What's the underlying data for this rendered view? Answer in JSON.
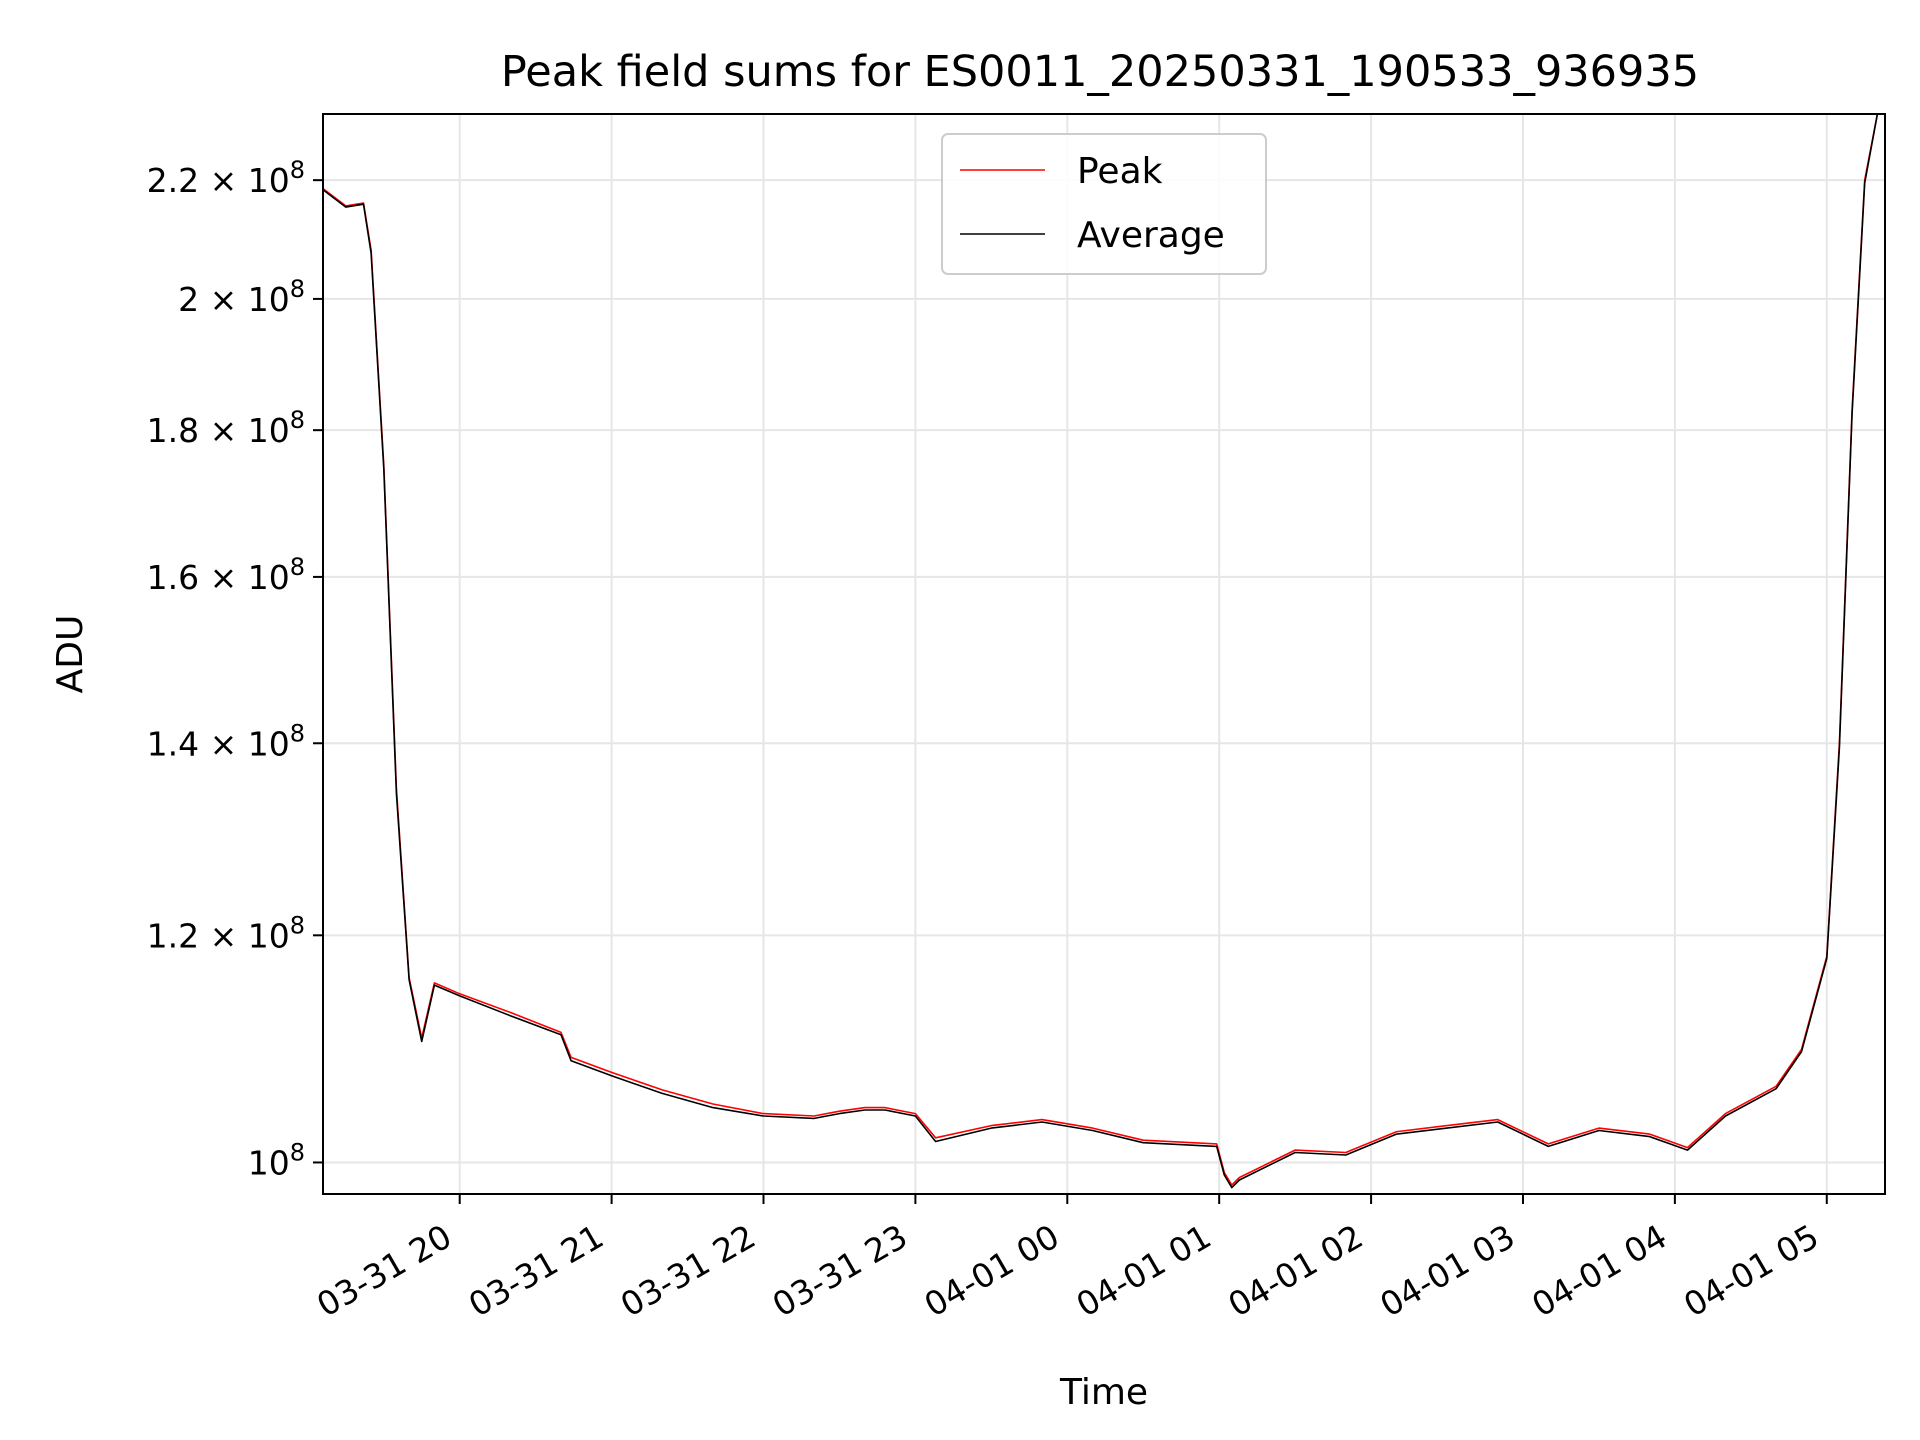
{
  "chart_data": {
    "type": "line",
    "title": "Peak field sums for ES0011_20250331_190533_936935",
    "xlabel": "Time",
    "ylabel": "ADU",
    "y_scale": "log",
    "grid": true,
    "legend_position": "top-center",
    "xlim": [
      "2025-03-31 19:06",
      "2025-04-01 05:23"
    ],
    "ylim": [
      97500000,
      232000000
    ],
    "x_ticks": [
      {
        "value": "2025-03-31 20:00",
        "label": "03-31 20"
      },
      {
        "value": "2025-03-31 21:00",
        "label": "03-31 21"
      },
      {
        "value": "2025-03-31 22:00",
        "label": "03-31 22"
      },
      {
        "value": "2025-03-31 23:00",
        "label": "03-31 23"
      },
      {
        "value": "2025-04-01 00:00",
        "label": "04-01 00"
      },
      {
        "value": "2025-04-01 01:00",
        "label": "04-01 01"
      },
      {
        "value": "2025-04-01 02:00",
        "label": "04-01 02"
      },
      {
        "value": "2025-04-01 03:00",
        "label": "04-01 03"
      },
      {
        "value": "2025-04-01 04:00",
        "label": "04-01 04"
      },
      {
        "value": "2025-04-01 05:00",
        "label": "04-01 05"
      }
    ],
    "y_ticks": [
      {
        "value": 100000000,
        "mantissa": "",
        "exponent": "8"
      },
      {
        "value": 120000000,
        "mantissa": "1.2",
        "exponent": "8"
      },
      {
        "value": 140000000,
        "mantissa": "1.4",
        "exponent": "8"
      },
      {
        "value": 160000000,
        "mantissa": "1.6",
        "exponent": "8"
      },
      {
        "value": 180000000,
        "mantissa": "1.8",
        "exponent": "8"
      },
      {
        "value": 200000000,
        "mantissa": "2",
        "exponent": "8"
      },
      {
        "value": 220000000,
        "mantissa": "2.2",
        "exponent": "8"
      }
    ],
    "series": [
      {
        "name": "Peak",
        "color": "#ff0000",
        "x": [
          "2025-03-31 19:06",
          "2025-03-31 19:15",
          "2025-03-31 19:22",
          "2025-03-31 19:25",
          "2025-03-31 19:30",
          "2025-03-31 19:35",
          "2025-03-31 19:40",
          "2025-03-31 19:45",
          "2025-03-31 19:50",
          "2025-03-31 20:00",
          "2025-03-31 20:20",
          "2025-03-31 20:40",
          "2025-03-31 20:44",
          "2025-03-31 21:00",
          "2025-03-31 21:20",
          "2025-03-31 21:40",
          "2025-03-31 22:00",
          "2025-03-31 22:20",
          "2025-03-31 22:30",
          "2025-03-31 22:40",
          "2025-03-31 22:48",
          "2025-03-31 23:00",
          "2025-03-31 23:08",
          "2025-03-31 23:30",
          "2025-03-31 23:50",
          "2025-04-01 00:10",
          "2025-04-01 00:30",
          "2025-04-01 00:59",
          "2025-04-01 01:02",
          "2025-04-01 01:05",
          "2025-04-01 01:08",
          "2025-04-01 01:30",
          "2025-04-01 01:50",
          "2025-04-01 02:10",
          "2025-04-01 02:30",
          "2025-04-01 02:50",
          "2025-04-01 03:10",
          "2025-04-01 03:30",
          "2025-04-01 03:50",
          "2025-04-01 04:05",
          "2025-04-01 04:20",
          "2025-04-01 04:40",
          "2025-04-01 04:50",
          "2025-04-01 05:00",
          "2025-04-01 05:05",
          "2025-04-01 05:10",
          "2025-04-01 05:15",
          "2025-04-01 05:20"
        ],
        "values": [
          218500000,
          215500000,
          216000000,
          208000000,
          175000000,
          135000000,
          116000000,
          110500000,
          115500000,
          114500000,
          112800000,
          111000000,
          108800000,
          107500000,
          106000000,
          104800000,
          104000000,
          103800000,
          104200000,
          104500000,
          104500000,
          104000000,
          102000000,
          103000000,
          103500000,
          102800000,
          101800000,
          101500000,
          99200000,
          98200000,
          98800000,
          101000000,
          100800000,
          102500000,
          103000000,
          103500000,
          101500000,
          102800000,
          102300000,
          101200000,
          104000000,
          106300000,
          109500000,
          118000000,
          140000000,
          183000000,
          220000000,
          232000000
        ]
      },
      {
        "name": "Average",
        "color": "#000000",
        "x": [
          "2025-03-31 19:06",
          "2025-03-31 19:15",
          "2025-03-31 19:22",
          "2025-03-31 19:25",
          "2025-03-31 19:30",
          "2025-03-31 19:35",
          "2025-03-31 19:40",
          "2025-03-31 19:45",
          "2025-03-31 19:50",
          "2025-03-31 20:00",
          "2025-03-31 20:20",
          "2025-03-31 20:40",
          "2025-03-31 20:44",
          "2025-03-31 21:00",
          "2025-03-31 21:20",
          "2025-03-31 21:40",
          "2025-03-31 22:00",
          "2025-03-31 22:20",
          "2025-03-31 22:30",
          "2025-03-31 22:40",
          "2025-03-31 22:48",
          "2025-03-31 23:00",
          "2025-03-31 23:08",
          "2025-03-31 23:30",
          "2025-03-31 23:50",
          "2025-04-01 00:10",
          "2025-04-01 00:30",
          "2025-04-01 00:59",
          "2025-04-01 01:02",
          "2025-04-01 01:05",
          "2025-04-01 01:08",
          "2025-04-01 01:30",
          "2025-04-01 01:50",
          "2025-04-01 02:10",
          "2025-04-01 02:30",
          "2025-04-01 02:50",
          "2025-04-01 03:10",
          "2025-04-01 03:30",
          "2025-04-01 03:50",
          "2025-04-01 04:05",
          "2025-04-01 04:20",
          "2025-04-01 04:40",
          "2025-04-01 04:50",
          "2025-04-01 05:00",
          "2025-04-01 05:05",
          "2025-04-01 05:10",
          "2025-04-01 05:15",
          "2025-04-01 05:20"
        ],
        "values": [
          218300000,
          215300000,
          215800000,
          207500000,
          174500000,
          134500000,
          115800000,
          110200000,
          115300000,
          114300000,
          112500000,
          110800000,
          108500000,
          107200000,
          105700000,
          104500000,
          103800000,
          103600000,
          104000000,
          104300000,
          104300000,
          103800000,
          101700000,
          102800000,
          103300000,
          102600000,
          101600000,
          101300000,
          99000000,
          98000000,
          98600000,
          100800000,
          100600000,
          102300000,
          102800000,
          103300000,
          101300000,
          102600000,
          102100000,
          101000000,
          103800000,
          106100000,
          109300000,
          117800000,
          139500000,
          182500000,
          219500000,
          232000000
        ]
      }
    ]
  }
}
